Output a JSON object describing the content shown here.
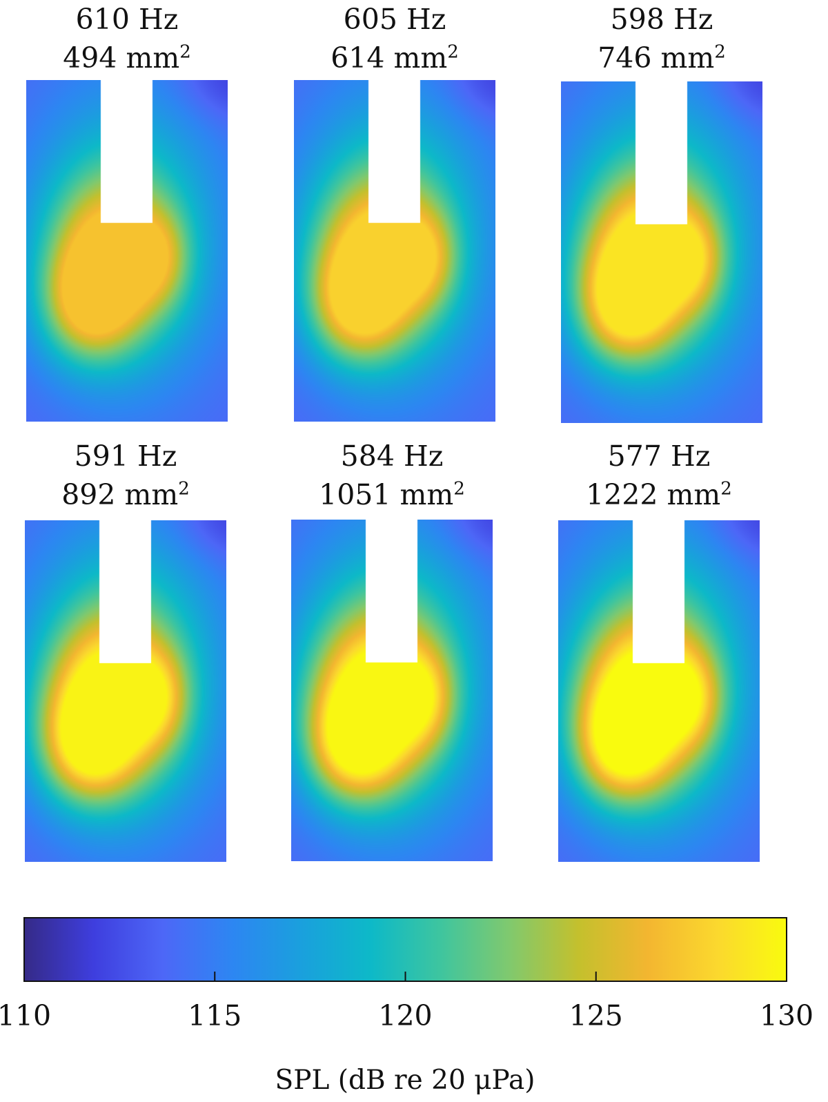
{
  "chart_data": {
    "type": "heatmap",
    "panels": [
      {
        "frequency": "610 Hz",
        "area_value": "494",
        "area_unit": "mm",
        "area_exp": "2",
        "peak_spl": 127.0
      },
      {
        "frequency": "605 Hz",
        "area_value": "614",
        "area_unit": "mm",
        "area_exp": "2",
        "peak_spl": 127.8
      },
      {
        "frequency": "598 Hz",
        "area_value": "746",
        "area_unit": "mm",
        "area_exp": "2",
        "peak_spl": 128.8
      },
      {
        "frequency": "591 Hz",
        "area_value": "892",
        "area_unit": "mm",
        "area_exp": "2",
        "peak_spl": 129.6
      },
      {
        "frequency": "584 Hz",
        "area_value": "1051",
        "area_unit": "mm",
        "area_exp": "2",
        "peak_spl": 129.8
      },
      {
        "frequency": "577 Hz",
        "area_value": "1222",
        "area_unit": "mm",
        "area_exp": "2",
        "peak_spl": 130.0
      }
    ],
    "colorbar": {
      "min": 110,
      "max": 130,
      "ticks": [
        110,
        115,
        120,
        125,
        130
      ],
      "label": "SPL (dB re 20 μPa)",
      "colormap": "parula",
      "stops": [
        "#352a87",
        "#3e3ede",
        "#4d67f7",
        "#2d86f2",
        "#1aa0dd",
        "#0db9c8",
        "#3ec59f",
        "#80c96e",
        "#c4c02d",
        "#f3b630",
        "#fbd82e",
        "#f9fb0e"
      ]
    }
  }
}
